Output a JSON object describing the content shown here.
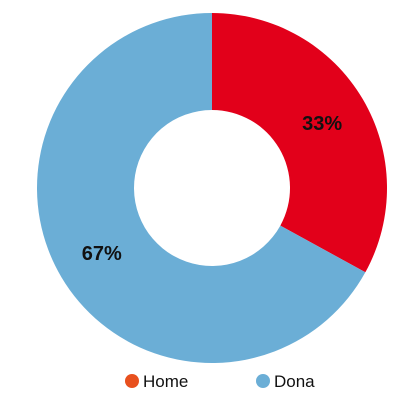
{
  "chart_data": {
    "type": "pie",
    "hole": true,
    "categories": [
      "Home",
      "Dona"
    ],
    "values": [
      33,
      67
    ],
    "data_labels": [
      "33%",
      "67%"
    ],
    "colors": [
      "#E2001A",
      "#6BAED6"
    ],
    "legend": {
      "placement": "bottom",
      "entries": [
        "Home",
        "Dona"
      ],
      "marker_colors": [
        "#E8501E",
        "#6BAED6"
      ]
    }
  }
}
